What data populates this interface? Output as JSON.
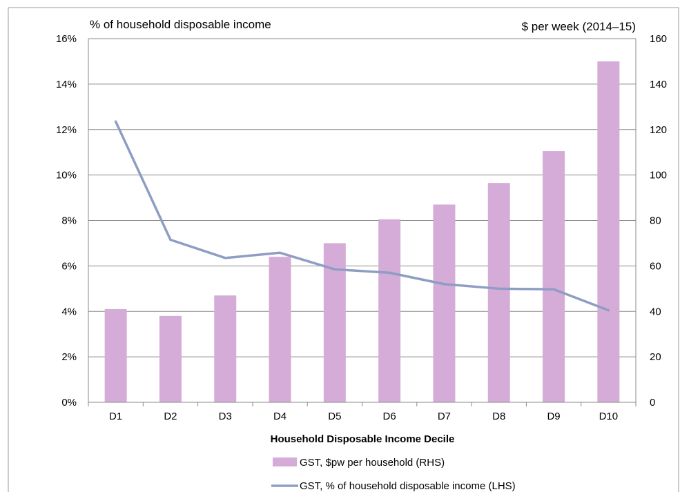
{
  "chart_data": {
    "type": "bar",
    "categories": [
      "D1",
      "D2",
      "D3",
      "D4",
      "D5",
      "D6",
      "D7",
      "D8",
      "D9",
      "D10"
    ],
    "series": [
      {
        "name": "GST, $pw per household (RHS)",
        "type": "bar",
        "axis": "right",
        "color": "#d5acd8",
        "values": [
          41,
          38,
          47,
          64,
          70,
          80.5,
          87,
          96.5,
          110.5,
          150
        ]
      },
      {
        "name": "GST, % of household disposable income (LHS)",
        "type": "line",
        "axis": "left",
        "color": "#8e9dc4",
        "values": [
          12.35,
          7.15,
          6.35,
          6.58,
          5.85,
          5.7,
          5.2,
          5.0,
          4.97,
          4.05
        ]
      }
    ],
    "left_axis": {
      "label": "% of household disposable income",
      "range": [
        0,
        16
      ],
      "ticks": [
        "0%",
        "2%",
        "4%",
        "6%",
        "8%",
        "10%",
        "12%",
        "14%",
        "16%"
      ]
    },
    "right_axis": {
      "label": "$ per week (2014–15)",
      "range": [
        0,
        160
      ],
      "ticks": [
        "0",
        "20",
        "40",
        "60",
        "80",
        "100",
        "120",
        "140",
        "160"
      ]
    },
    "xlabel": "Household Disposable Income Decile",
    "grid": true,
    "legend_position": "bottom"
  }
}
